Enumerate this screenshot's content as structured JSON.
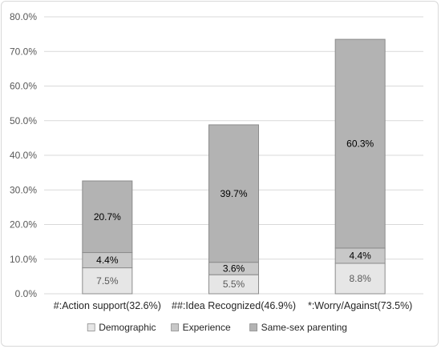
{
  "chart_data": {
    "type": "bar",
    "stacked": true,
    "categories": [
      "#:Action support(32.6%)",
      "##:Idea Recognized(46.9%)",
      "*:Worry/Against(73.5%)"
    ],
    "series": [
      {
        "name": "Demographic",
        "values": [
          7.5,
          5.5,
          8.8
        ],
        "labels": [
          "7.5%",
          "5.5%",
          "8.8%"
        ],
        "color": "#e6e6e6",
        "label_color": "#595959"
      },
      {
        "name": "Experience",
        "values": [
          4.4,
          3.6,
          4.4
        ],
        "labels": [
          "4.4%",
          "3.6%",
          "4.4%"
        ],
        "color": "#c8c8c8",
        "label_color": "#000000"
      },
      {
        "name": "Same-sex parenting",
        "values": [
          20.7,
          39.7,
          60.3
        ],
        "labels": [
          "20.7%",
          "39.7%",
          "60.3%"
        ],
        "color": "#b3b3b3",
        "label_color": "#000000"
      }
    ],
    "ylim": [
      0,
      80
    ],
    "yticks": [
      0,
      10,
      20,
      30,
      40,
      50,
      60,
      70,
      80
    ],
    "ytick_labels": [
      "0.0%",
      "10.0%",
      "20.0%",
      "30.0%",
      "40.0%",
      "50.0%",
      "60.0%",
      "70.0%",
      "80.0%"
    ],
    "grid": true,
    "legend_position": "bottom",
    "edge_color": "#8c8c8c",
    "grid_color": "#d9d9d9"
  }
}
